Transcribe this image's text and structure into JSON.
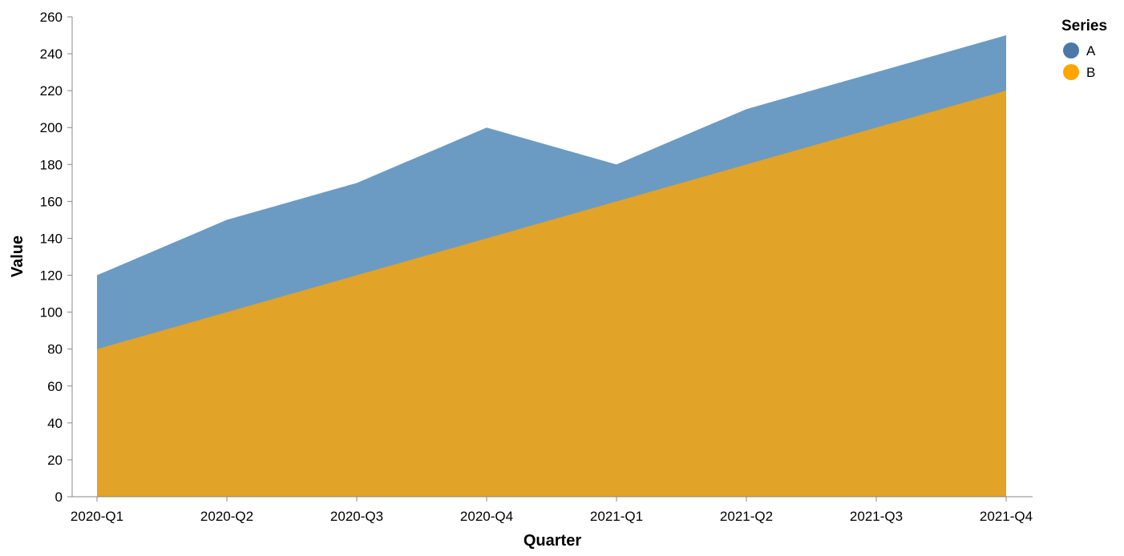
{
  "chart_data": {
    "type": "area",
    "stacked": false,
    "categories": [
      "2020-Q1",
      "2020-Q2",
      "2020-Q3",
      "2020-Q4",
      "2021-Q1",
      "2021-Q2",
      "2021-Q3",
      "2021-Q4"
    ],
    "series": [
      {
        "name": "A",
        "values": [
          120,
          150,
          170,
          200,
          180,
          210,
          230,
          250
        ],
        "color": "#4c78a8"
      },
      {
        "name": "B",
        "values": [
          80,
          100,
          120,
          140,
          160,
          180,
          200,
          220
        ],
        "color": "#f58518"
      }
    ],
    "xlabel": "Quarter",
    "ylabel": "Value",
    "ylim": [
      0,
      260
    ],
    "yticks": [
      0,
      20,
      40,
      60,
      80,
      100,
      120,
      140,
      160,
      180,
      200,
      220,
      240,
      260
    ],
    "legend": {
      "title": "Series",
      "position": "top-right"
    },
    "colors": {
      "A_point": "#4c78a8",
      "A_area": "#6b9bc3",
      "B_point": "#ffa500",
      "B_area": "#e1a328",
      "axis": "#888888"
    },
    "grid": false
  }
}
